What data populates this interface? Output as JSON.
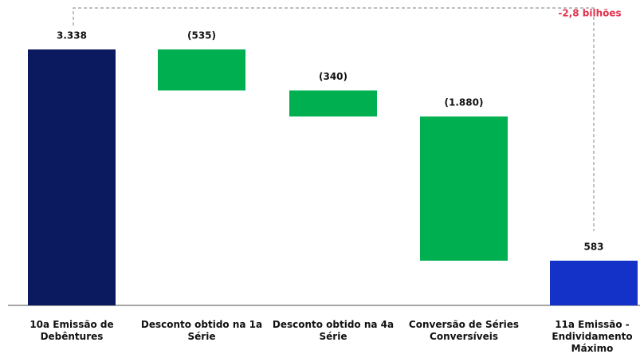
{
  "chart_data": {
    "type": "waterfall",
    "categories": [
      "10a Emissão de Debêntures",
      "Desconto obtido na 1a Série",
      "Desconto obtido na 4a Série",
      "Conversão de Séries Conversíveis",
      "11a Emissão - Endividamento Máximo"
    ],
    "values": [
      3338,
      -535,
      -340,
      -1880,
      583
    ],
    "value_labels": [
      "3.338",
      "(535)",
      "(340)",
      "(1.880)",
      "583"
    ],
    "measures": [
      "absolute",
      "relative",
      "relative",
      "relative",
      "total"
    ],
    "colors": [
      "#0b1a5e",
      "#00b050",
      "#00b050",
      "#00b050",
      "#1432c8"
    ],
    "annotation": "-2,8 bilhões"
  }
}
